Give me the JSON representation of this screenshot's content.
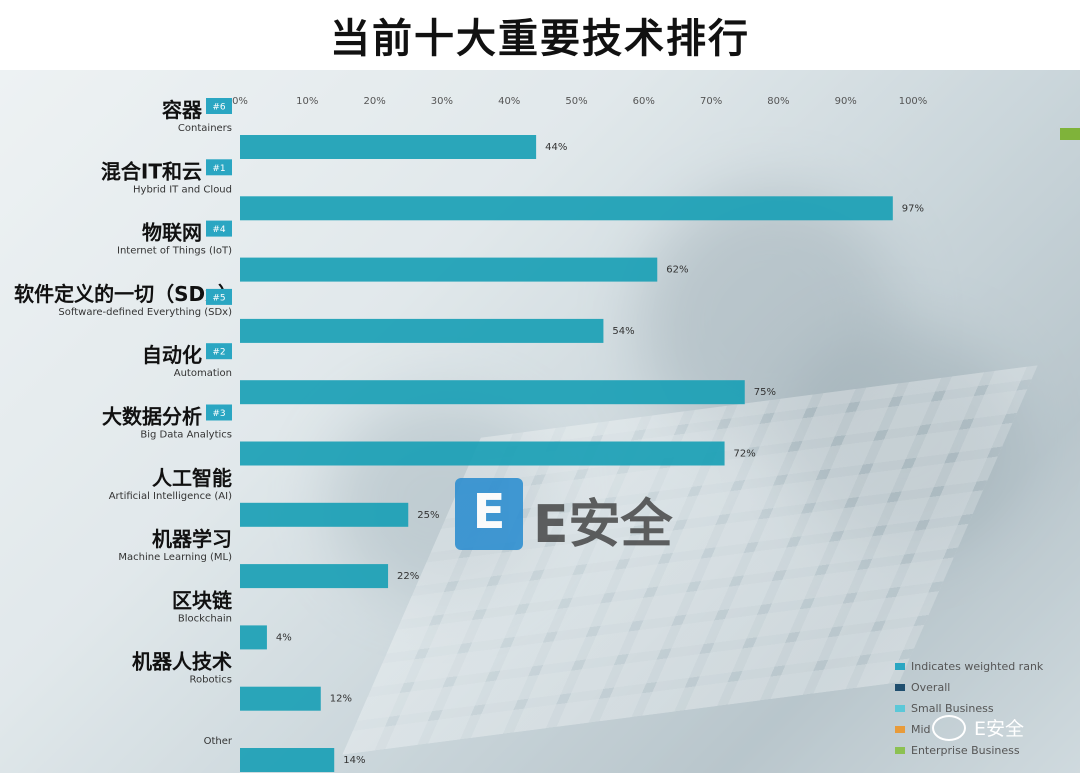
{
  "title": "当前十大重要技术排行",
  "chart_data": {
    "type": "bar",
    "orientation": "horizontal",
    "title": "当前十大重要技术排行",
    "xlim": [
      0,
      100
    ],
    "x_ticks": [
      "0%",
      "10%",
      "20%",
      "30%",
      "40%",
      "50%",
      "60%",
      "70%",
      "80%",
      "90%",
      "100%"
    ],
    "categories": [
      {
        "label_cn": "容器",
        "label_en": "Containers",
        "rank": "#6",
        "value": 44,
        "value_label": "44%"
      },
      {
        "label_cn": "混合IT和云",
        "label_en": "Hybrid IT and Cloud",
        "rank": "#1",
        "value": 97,
        "value_label": "97%"
      },
      {
        "label_cn": "物联网",
        "label_en": "Internet of Things (IoT)",
        "rank": "#4",
        "value": 62,
        "value_label": "62%"
      },
      {
        "label_cn": "软件定义的一切（SDx）",
        "label_en": "Software-defined Everything (SDx)",
        "rank": "#5",
        "value": 54,
        "value_label": "54%"
      },
      {
        "label_cn": "自动化",
        "label_en": "Automation",
        "rank": "#2",
        "value": 75,
        "value_label": "75%"
      },
      {
        "label_cn": "大数据分析",
        "label_en": "Big Data Analytics",
        "rank": "#3",
        "value": 72,
        "value_label": "72%"
      },
      {
        "label_cn": "人工智能",
        "label_en": "Artificial Intelligence (AI)",
        "rank": "",
        "value": 25,
        "value_label": "25%"
      },
      {
        "label_cn": "机器学习",
        "label_en": "Machine Learning (ML)",
        "rank": "",
        "value": 22,
        "value_label": "22%"
      },
      {
        "label_cn": "区块链",
        "label_en": "Blockchain",
        "rank": "",
        "value": 4,
        "value_label": "4%"
      },
      {
        "label_cn": "机器人技术",
        "label_en": "Robotics",
        "rank": "",
        "value": 12,
        "value_label": "12%"
      },
      {
        "label_cn": "",
        "label_en": "Other",
        "rank": "",
        "value": 14,
        "value_label": "14%"
      }
    ],
    "bar_color": "#1a9fb5",
    "rank_badge_color": "#2aa6c2",
    "legend": [
      {
        "label": "Indicates weighted rank",
        "color": "#2aa6c2"
      },
      {
        "label": "Overall",
        "color": "#1f4e6e"
      },
      {
        "label": "Small Business",
        "color": "#5bc8d8"
      },
      {
        "label": "Mid",
        "color": "#e89b3a"
      },
      {
        "label": "Enterprise Business",
        "color": "#8cc152"
      }
    ],
    "legend_position": "bottom-right",
    "grid": false
  },
  "logo": {
    "mark": "E",
    "word": "E安全"
  },
  "watermark": "E安全"
}
